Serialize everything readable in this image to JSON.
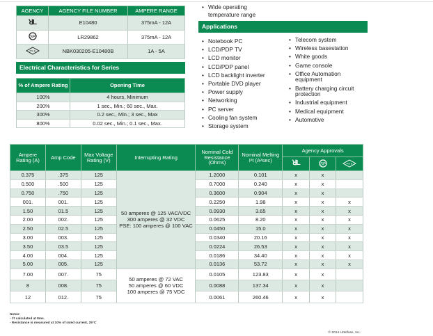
{
  "agency_table": {
    "headers": [
      "AGENCY",
      "AGENCY FILE NUMBER",
      "AMPERE RANGE"
    ],
    "rows": [
      {
        "icon": "ul-recognized-icon",
        "file": "E10480",
        "range": "375mA - 12A"
      },
      {
        "icon": "csa-icon",
        "file": "LR29862",
        "range": "375mA - 12A"
      },
      {
        "icon": "pse-icon",
        "file": "NBK030205-E10480B",
        "range": "1A - 5A"
      }
    ]
  },
  "electrical": {
    "title": "Electrical Characteristics for Series",
    "headers": [
      "% of Ampere Rating",
      "Opening Time"
    ],
    "rows": [
      [
        "100%",
        "4 hours, Minimum"
      ],
      [
        "200%",
        "1 sec., Min.; 60 sec., Max."
      ],
      [
        "300%",
        "0.2 sec., Min.; 3 sec., Max"
      ],
      [
        "800%",
        "0.02 sec., Min.; 0.1 sec., Max."
      ]
    ]
  },
  "features": [
    "Wide operating temperature range"
  ],
  "applications": {
    "title": "Applications",
    "col1": [
      "Notebook PC",
      "LCD/PDP TV",
      "LCD monitor",
      "LCD/PDP panel",
      "LCD backlight inverter",
      "Portable DVD player",
      "Power supply",
      "Networking",
      "PC server",
      "Cooling fan system",
      "Storage system"
    ],
    "col2": [
      "Telecom system",
      "Wireless basestation",
      "White goods",
      "Game console",
      "Office Automation equipment",
      "Battery charging circuit protection",
      "Industrial equipment",
      "Medical equipment",
      "Automotive"
    ]
  },
  "main_table": {
    "headers": [
      "Ampere Rating (A)",
      "Amp Code",
      "Max Voltage Rating (V)",
      "Interrupting Rating",
      "Nominal Cold Resistance (Ohms)",
      "Nominal Melting I²t (A²sec)",
      "Agency Approvals"
    ],
    "approval_icons": [
      "ul-recognized-icon",
      "csa-icon",
      "pse-icon"
    ],
    "interrupting": [
      "50 amperes @ 125 VAC/VDC\n300 amperes @ 32 VDC\nPSE: 100 amperes @ 100 VAC",
      "50 amperes @ 72 VAC\n50 amperes @ 60 VDC\n100 amperes @ 75 VDC"
    ],
    "rows": [
      [
        "0.375",
        ".375",
        "125",
        "1.2000",
        "0.101",
        "x",
        "x",
        ""
      ],
      [
        "0.500",
        ".500",
        "125",
        "0.7000",
        "0.240",
        "x",
        "x",
        ""
      ],
      [
        "0.750",
        ".750",
        "125",
        "0.3600",
        "0.904",
        "x",
        "x",
        ""
      ],
      [
        "001.",
        "001.",
        "125",
        "0.2250",
        "1.98",
        "x",
        "x",
        "x"
      ],
      [
        "1.50",
        "01.5",
        "125",
        "0.0930",
        "3.65",
        "x",
        "x",
        "x"
      ],
      [
        "2.00",
        "002.",
        "125",
        "0.0625",
        "8.20",
        "x",
        "x",
        "x"
      ],
      [
        "2.50",
        "02.5",
        "125",
        "0.0450",
        "15.0",
        "x",
        "x",
        "x"
      ],
      [
        "3.00",
        "003.",
        "125",
        "0.0340",
        "20.16",
        "x",
        "x",
        "x"
      ],
      [
        "3.50",
        "03.5",
        "125",
        "0.0224",
        "26.53",
        "x",
        "x",
        "x"
      ],
      [
        "4.00",
        "004.",
        "125",
        "0.0186",
        "34.40",
        "x",
        "x",
        "x"
      ],
      [
        "5.00",
        "005.",
        "125",
        "0.0136",
        "53.72",
        "x",
        "x",
        "x"
      ],
      [
        "7.00",
        "007.",
        "75",
        "0.0105",
        "123.83",
        "x",
        "x",
        ""
      ],
      [
        "8",
        "008.",
        "75",
        "0.0088",
        "137.34",
        "x",
        "x",
        ""
      ],
      [
        "12",
        "012.",
        "75",
        "0.0061",
        "260.46",
        "x",
        "x",
        ""
      ]
    ]
  },
  "notes": [
    "Notes:",
    "- I²t calculated at 8ms.",
    "- Resistance is measured at 10% of rated current, 25°C"
  ],
  "copyright": "© 2014 Littelfuse, Inc."
}
